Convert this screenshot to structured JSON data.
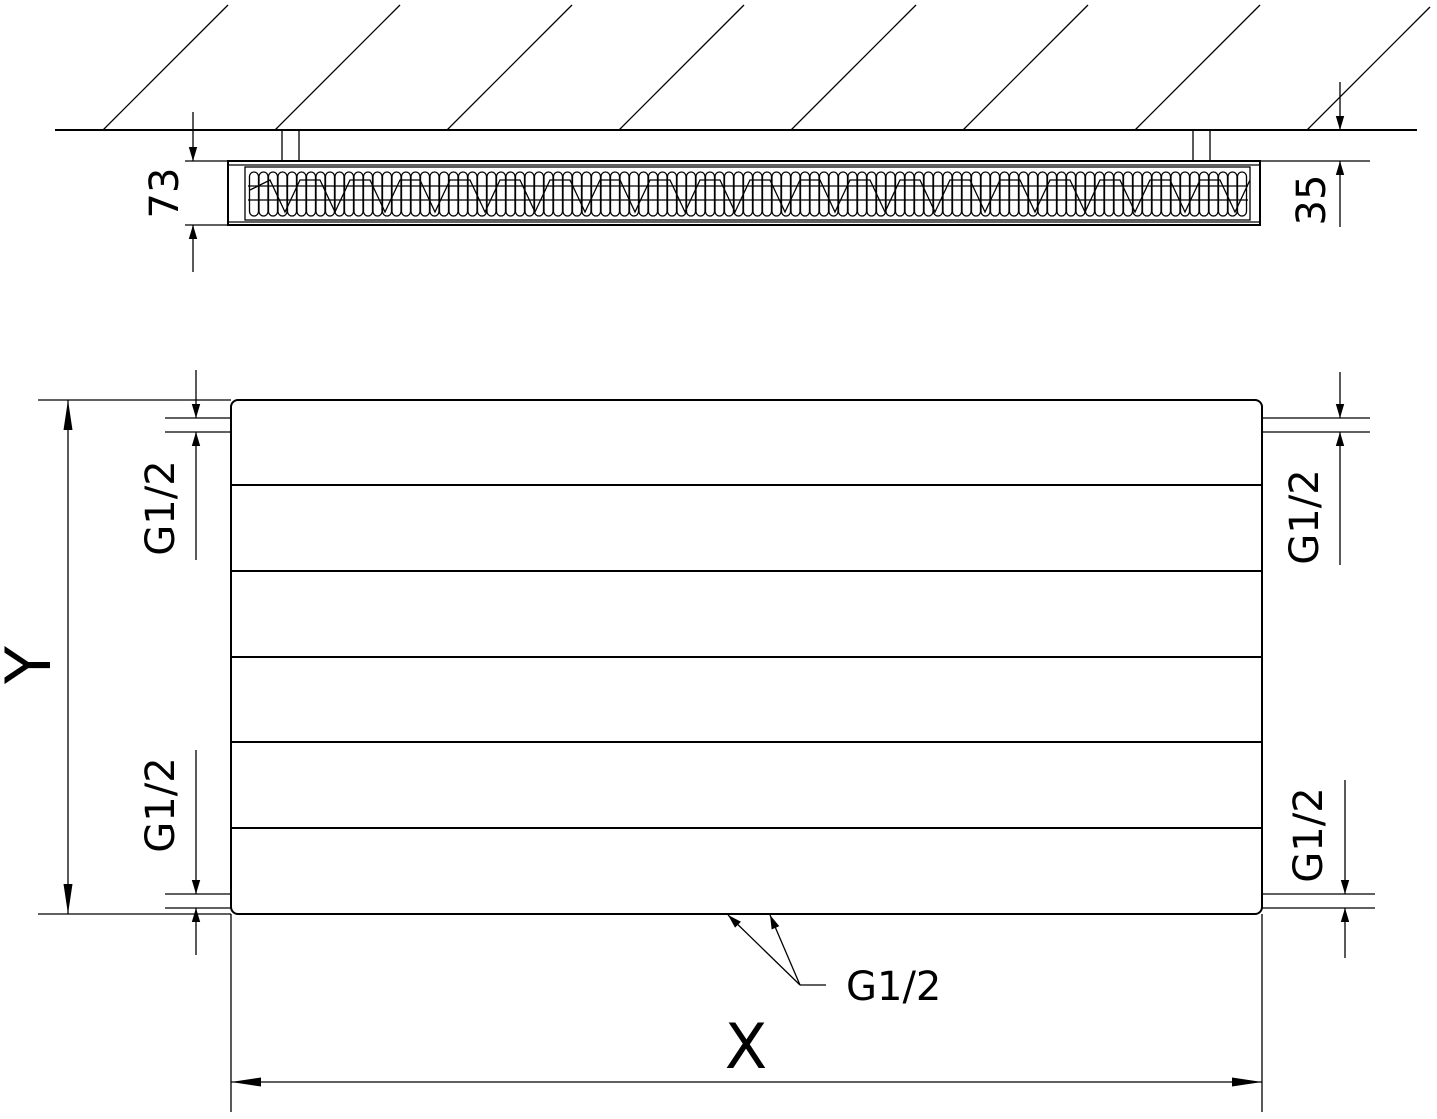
{
  "top_view": {
    "depth_label": "73",
    "wall_gap_label": "35"
  },
  "front_view": {
    "height_label": "Y",
    "width_label": "X",
    "left_top_connection": "G1/2",
    "left_bottom_connection": "G1/2",
    "right_top_connection": "G1/2",
    "right_bottom_connection": "G1/2",
    "bottom_connection": "G1/2"
  }
}
